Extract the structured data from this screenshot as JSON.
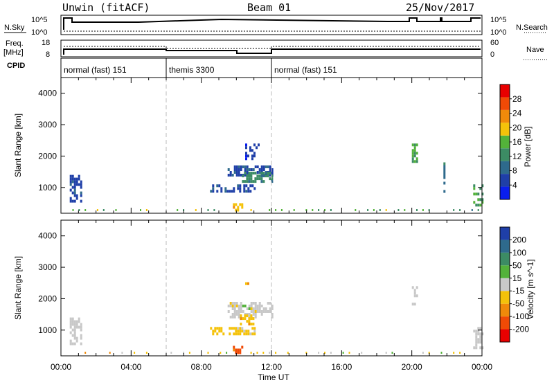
{
  "header": {
    "station": "Unwin (fitACF)",
    "beam": "Beam 01",
    "date": "25/Nov/2017"
  },
  "top_panels": {
    "nsky_label": "N.Sky",
    "nsky_ticks": [
      "10^5",
      "10^0"
    ],
    "nsearch_label": "N.Search",
    "nsearch_ticks": [
      "10^5",
      "10^0"
    ],
    "freq_label": "Freq.",
    "freq_unit": "[MHz]",
    "freq_ticks": [
      "18",
      "8"
    ],
    "nave_label": "Nave",
    "nave_ticks": [
      "60",
      "0"
    ],
    "cpid_label": "CPID",
    "cpid_segments": [
      {
        "label": "normal (fast) 151",
        "start": 0,
        "end": 6
      },
      {
        "label": "themis 3300",
        "start": 6,
        "end": 12
      },
      {
        "label": "normal (fast) 151",
        "start": 12,
        "end": 24
      }
    ]
  },
  "colors": {
    "power_scale": [
      "#0a1eee",
      "#1f3fa8",
      "#2e6a8c",
      "#3c8c64",
      "#53b23a",
      "#f4c20a",
      "#f08a0a",
      "#f04a06",
      "#e80000"
    ],
    "velocity_scale": [
      "#e80000",
      "#f04a06",
      "#f08a0a",
      "#f4c20a",
      "#c8c8c8",
      "#53b23a",
      "#3c8c64",
      "#2e6a8c",
      "#1f3fa8"
    ]
  },
  "chart_data": [
    {
      "type": "heatmap",
      "title": "",
      "quantity": "Power",
      "xlabel": "",
      "ylabel": "Slant Range [km]",
      "xlim": [
        0,
        24
      ],
      "ylim": [
        180,
        4500
      ],
      "yticks": [
        "1000",
        "2000",
        "3000",
        "4000"
      ],
      "colorbar_label": "Power [dB]",
      "colorbar_ticks": [
        "4",
        "8",
        "12",
        "16",
        "20",
        "24",
        "28"
      ],
      "clim": [
        0,
        32
      ],
      "regions": [
        {
          "t": [
            0.5,
            1.1
          ],
          "r": [
            600,
            1400
          ],
          "value": 6
        },
        {
          "t": [
            9.5,
            12.0
          ],
          "r": [
            1400,
            1700
          ],
          "value": 6
        },
        {
          "t": [
            8.5,
            11.0
          ],
          "r": [
            850,
            1100
          ],
          "value": 7
        },
        {
          "t": [
            10.2,
            12.0
          ],
          "r": [
            1200,
            1500
          ],
          "value": 12
        },
        {
          "t": [
            9.8,
            10.3
          ],
          "r": [
            300,
            500
          ],
          "value": 20
        },
        {
          "t": [
            10.5,
            11.3
          ],
          "r": [
            1900,
            2400
          ],
          "value": 5
        },
        {
          "t": [
            20.0,
            20.3
          ],
          "r": [
            1800,
            2400
          ],
          "value": 15
        },
        {
          "t": [
            23.5,
            24.0
          ],
          "r": [
            400,
            1100
          ],
          "value": 14
        },
        {
          "t": [
            21.8,
            21.9
          ],
          "r": [
            900,
            1800
          ],
          "value": 10
        }
      ]
    },
    {
      "type": "heatmap",
      "title": "",
      "quantity": "Velocity",
      "xlabel": "Time UT",
      "ylabel": "Slant Range [km]",
      "xlim": [
        0,
        24
      ],
      "ylim": [
        180,
        4500
      ],
      "x_tick_labels": [
        "00:00",
        "04:00",
        "08:00",
        "12:00",
        "16:00",
        "20:00",
        "00:00"
      ],
      "yticks": [
        "1000",
        "2000",
        "3000",
        "4000"
      ],
      "colorbar_label": "Velocity [m s^-1]",
      "colorbar_ticks": [
        "-200",
        "-100",
        "-50",
        "-15",
        "15",
        "50",
        "100",
        "200"
      ],
      "clim": [
        -250,
        250
      ],
      "regions": [
        {
          "t": [
            0.5,
            1.1
          ],
          "r": [
            600,
            1400
          ],
          "value": 0
        },
        {
          "t": [
            9.5,
            12.0
          ],
          "r": [
            1400,
            1900
          ],
          "value": 0
        },
        {
          "t": [
            8.5,
            11.0
          ],
          "r": [
            850,
            1100
          ],
          "value": -40
        },
        {
          "t": [
            10.2,
            11.0
          ],
          "r": [
            1200,
            1500
          ],
          "value": -60
        },
        {
          "t": [
            9.8,
            10.3
          ],
          "r": [
            300,
            500
          ],
          "value": -150
        },
        {
          "t": [
            10.5,
            10.7
          ],
          "r": [
            2500,
            2700
          ],
          "value": -80
        },
        {
          "t": [
            20.0,
            20.3
          ],
          "r": [
            1800,
            2400
          ],
          "value": 0
        },
        {
          "t": [
            23.5,
            24.0
          ],
          "r": [
            400,
            1100
          ],
          "value": 0
        }
      ]
    }
  ]
}
